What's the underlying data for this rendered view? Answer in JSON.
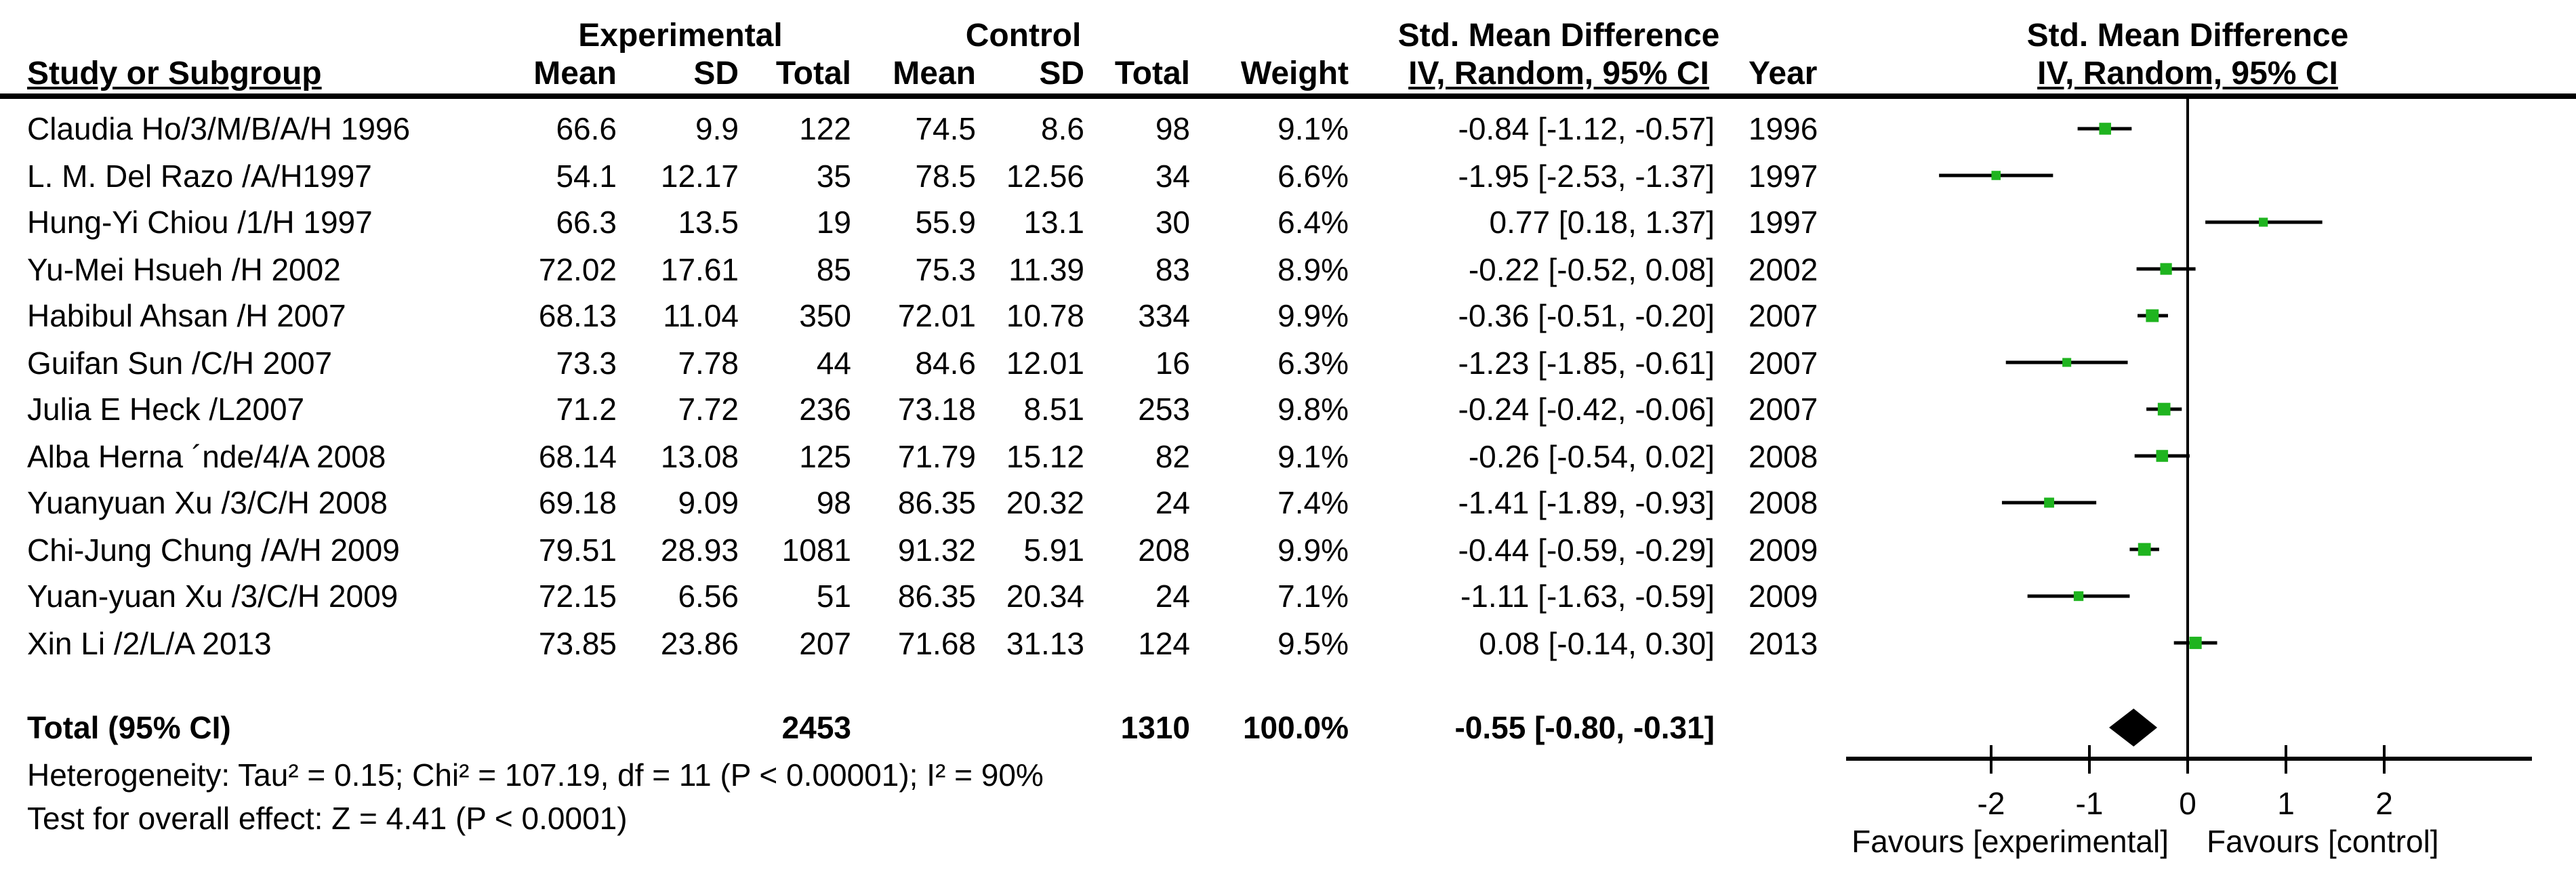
{
  "headers": {
    "study": "Study or Subgroup",
    "experimental": "Experimental",
    "control": "Control",
    "mean": "Mean",
    "sd": "SD",
    "total": "Total",
    "weight": "Weight",
    "smd": "Std. Mean Difference",
    "iv": "IV, Random, 95% CI",
    "year": "Year"
  },
  "studies": [
    {
      "name": "Claudia Ho/3/M/B/A/H 1996",
      "exp_mean": "66.6",
      "exp_sd": "9.9",
      "exp_total": "122",
      "ctrl_mean": "74.5",
      "ctrl_sd": "8.6",
      "ctrl_total": "98",
      "weight": "9.1%",
      "smd_ci": "-0.84 [-1.12, -0.57]",
      "year": "1996"
    },
    {
      "name": "L. M. Del Razo /A/H1997",
      "exp_mean": "54.1",
      "exp_sd": "12.17",
      "exp_total": "35",
      "ctrl_mean": "78.5",
      "ctrl_sd": "12.56",
      "ctrl_total": "34",
      "weight": "6.6%",
      "smd_ci": "-1.95 [-2.53, -1.37]",
      "year": "1997"
    },
    {
      "name": "Hung-Yi Chiou /1/H 1997",
      "exp_mean": "66.3",
      "exp_sd": "13.5",
      "exp_total": "19",
      "ctrl_mean": "55.9",
      "ctrl_sd": "13.1",
      "ctrl_total": "30",
      "weight": "6.4%",
      "smd_ci": "0.77 [0.18, 1.37]",
      "year": "1997"
    },
    {
      "name": "Yu-Mei Hsueh /H 2002",
      "exp_mean": "72.02",
      "exp_sd": "17.61",
      "exp_total": "85",
      "ctrl_mean": "75.3",
      "ctrl_sd": "11.39",
      "ctrl_total": "83",
      "weight": "8.9%",
      "smd_ci": "-0.22 [-0.52, 0.08]",
      "year": "2002"
    },
    {
      "name": "Habibul Ahsan /H 2007",
      "exp_mean": "68.13",
      "exp_sd": "11.04",
      "exp_total": "350",
      "ctrl_mean": "72.01",
      "ctrl_sd": "10.78",
      "ctrl_total": "334",
      "weight": "9.9%",
      "smd_ci": "-0.36 [-0.51, -0.20]",
      "year": "2007"
    },
    {
      "name": "Guifan Sun /C/H 2007",
      "exp_mean": "73.3",
      "exp_sd": "7.78",
      "exp_total": "44",
      "ctrl_mean": "84.6",
      "ctrl_sd": "12.01",
      "ctrl_total": "16",
      "weight": "6.3%",
      "smd_ci": "-1.23 [-1.85, -0.61]",
      "year": "2007"
    },
    {
      "name": "Julia E Heck /L2007",
      "exp_mean": "71.2",
      "exp_sd": "7.72",
      "exp_total": "236",
      "ctrl_mean": "73.18",
      "ctrl_sd": "8.51",
      "ctrl_total": "253",
      "weight": "9.8%",
      "smd_ci": "-0.24 [-0.42, -0.06]",
      "year": "2007"
    },
    {
      "name": "Alba Herna ´nde/4/A 2008",
      "exp_mean": "68.14",
      "exp_sd": "13.08",
      "exp_total": "125",
      "ctrl_mean": "71.79",
      "ctrl_sd": "15.12",
      "ctrl_total": "82",
      "weight": "9.1%",
      "smd_ci": "-0.26 [-0.54, 0.02]",
      "year": "2008"
    },
    {
      "name": "Yuanyuan Xu /3/C/H 2008",
      "exp_mean": "69.18",
      "exp_sd": "9.09",
      "exp_total": "98",
      "ctrl_mean": "86.35",
      "ctrl_sd": "20.32",
      "ctrl_total": "24",
      "weight": "7.4%",
      "smd_ci": "-1.41 [-1.89, -0.93]",
      "year": "2008"
    },
    {
      "name": "Chi-Jung Chung /A/H 2009",
      "exp_mean": "79.51",
      "exp_sd": "28.93",
      "exp_total": "1081",
      "ctrl_mean": "91.32",
      "ctrl_sd": "5.91",
      "ctrl_total": "208",
      "weight": "9.9%",
      "smd_ci": "-0.44 [-0.59, -0.29]",
      "year": "2009"
    },
    {
      "name": "Yuan-yuan Xu /3/C/H 2009",
      "exp_mean": "72.15",
      "exp_sd": "6.56",
      "exp_total": "51",
      "ctrl_mean": "86.35",
      "ctrl_sd": "20.34",
      "ctrl_total": "24",
      "weight": "7.1%",
      "smd_ci": "-1.11 [-1.63, -0.59]",
      "year": "2009"
    },
    {
      "name": "Xin Li /2/L/A 2013",
      "exp_mean": "73.85",
      "exp_sd": "23.86",
      "exp_total": "207",
      "ctrl_mean": "71.68",
      "ctrl_sd": "31.13",
      "ctrl_total": "124",
      "weight": "9.5%",
      "smd_ci": "0.08 [-0.14, 0.30]",
      "year": "2013"
    }
  ],
  "totals": {
    "label": "Total (95% CI)",
    "exp_total": "2453",
    "ctrl_total": "1310",
    "weight": "100.0%",
    "smd_ci": "-0.55 [-0.80, -0.31]"
  },
  "footer": {
    "heterogeneity": "Heterogeneity: Tau² = 0.15; Chi² = 107.19, df = 11 (P < 0.00001); I² = 90%",
    "overall_effect": "Test for overall effect: Z = 4.41 (P < 0.0001)"
  },
  "axis": {
    "favours_left": "Favours [experimental]",
    "favours_right": "Favours [control]"
  },
  "colors": {
    "marker_green": "#1fb41f",
    "line_black": "#000000",
    "diamond_black": "#000000"
  },
  "chart_data": {
    "type": "scatter",
    "subtype": "forest-plot",
    "title": "Std. Mean Difference  IV, Random, 95% CI",
    "categories": [
      "Claudia Ho/3/M/B/A/H 1996",
      "L. M. Del Razo /A/H1997",
      "Hung-Yi Chiou /1/H 1997",
      "Yu-Mei Hsueh /H 2002",
      "Habibul Ahsan /H 2007",
      "Guifan Sun /C/H 2007",
      "Julia E Heck /L2007",
      "Alba Herna ´nde/4/A 2008",
      "Yuanyuan Xu /3/C/H 2008",
      "Chi-Jung Chung /A/H 2009",
      "Yuan-yuan Xu /3/C/H 2009",
      "Xin Li /2/L/A 2013"
    ],
    "years": [
      1996,
      1997,
      1997,
      2002,
      2007,
      2007,
      2007,
      2008,
      2008,
      2009,
      2009,
      2013
    ],
    "series": [
      {
        "name": "Std. Mean Difference",
        "values": [
          -0.84,
          -1.95,
          0.77,
          -0.22,
          -0.36,
          -1.23,
          -0.24,
          -0.26,
          -1.41,
          -0.44,
          -1.11,
          0.08
        ]
      },
      {
        "name": "CI lower",
        "values": [
          -1.12,
          -2.53,
          0.18,
          -0.52,
          -0.51,
          -1.85,
          -0.42,
          -0.54,
          -1.89,
          -0.59,
          -1.63,
          -0.14
        ]
      },
      {
        "name": "CI upper",
        "values": [
          -0.57,
          -1.37,
          1.37,
          0.08,
          -0.2,
          -0.61,
          -0.06,
          0.02,
          -0.93,
          -0.29,
          -0.59,
          0.3
        ]
      },
      {
        "name": "Weight %",
        "values": [
          9.1,
          6.6,
          6.4,
          8.9,
          9.9,
          6.3,
          9.8,
          9.1,
          7.4,
          9.9,
          7.1,
          9.5
        ]
      }
    ],
    "total": {
      "label": "Total (95% CI)",
      "value": -0.55,
      "ci": [
        -0.8,
        -0.31
      ],
      "weight_pct": 100.0,
      "experimental_n": 2453,
      "control_n": 1310
    },
    "xticks": [
      -2,
      -1,
      0,
      1,
      2
    ],
    "xlim": [
      -3.5,
      3.5
    ],
    "grid": false,
    "legend_position": "none",
    "xlabel_left": "Favours [experimental]",
    "xlabel_right": "Favours [control]"
  }
}
